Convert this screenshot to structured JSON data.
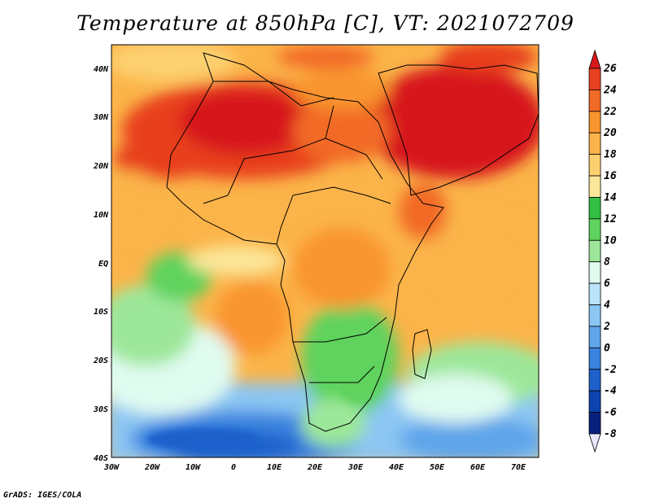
{
  "title": "Temperature at 850hPa [C], VT: 2021072709",
  "credit": "GrADS: IGES/COLA",
  "map": {
    "lat_labels": [
      "40N",
      "30N",
      "20N",
      "10N",
      "EQ",
      "10S",
      "20S",
      "30S",
      "40S"
    ],
    "lon_labels": [
      "30W",
      "20W",
      "10W",
      "0",
      "10E",
      "20E",
      "30E",
      "40E",
      "50E",
      "60E",
      "70E"
    ]
  },
  "colorbar": {
    "levels": [
      "26",
      "24",
      "22",
      "20",
      "18",
      "16",
      "14",
      "12",
      "10",
      "8",
      "6",
      "4",
      "2",
      "0",
      "-2",
      "-4",
      "-6",
      "-8"
    ],
    "colors": [
      "#d7191c",
      "#e8401e",
      "#f26b26",
      "#f9952f",
      "#fbb449",
      "#fdd06f",
      "#fbe79a",
      "#31c043",
      "#5ed35d",
      "#9de79a",
      "#e0fbf0",
      "#b8e3fb",
      "#8cc6f3",
      "#5ea5ea",
      "#3a84df",
      "#1f61cc",
      "#0d43b0",
      "#08207e",
      "#e6e6ff"
    ]
  }
}
